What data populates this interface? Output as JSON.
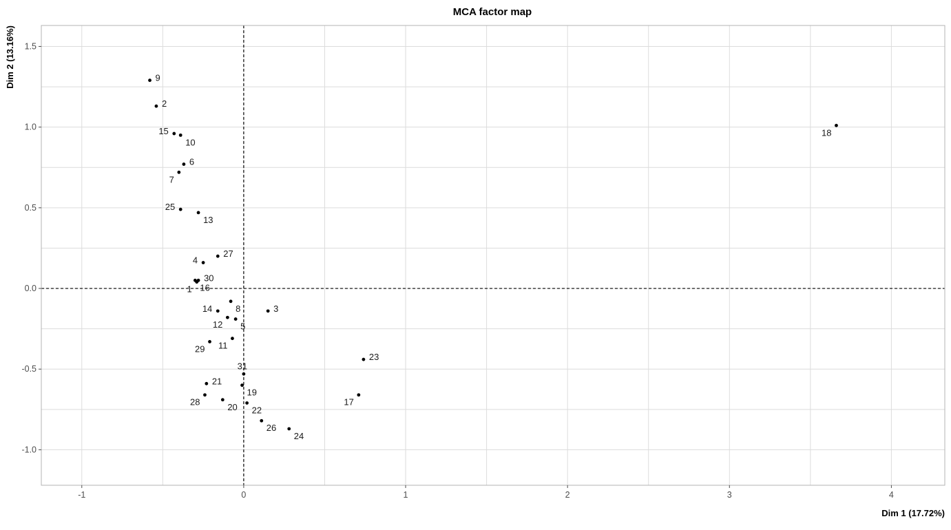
{
  "chart_data": {
    "type": "scatter",
    "title": "MCA factor map",
    "xlabel": "Dim 1 (17.72%)",
    "ylabel": "Dim 2 (13.16%)",
    "xlim": [
      -1.25,
      4.33
    ],
    "ylim": [
      -1.22,
      1.63
    ],
    "x_ticks": [
      -1,
      0,
      1,
      2,
      3,
      4
    ],
    "y_ticks": [
      -1.0,
      -0.5,
      0.0,
      0.5,
      1.0,
      1.5
    ],
    "x_tick_labels": [
      "-1",
      "0",
      "1",
      "2",
      "3",
      "4"
    ],
    "y_tick_labels": [
      "-1.0",
      "-0.5",
      "0.0",
      "0.5",
      "1.0",
      "1.5"
    ],
    "grid": true,
    "reference_lines": {
      "x": 0,
      "y": 0,
      "style": "dashed"
    },
    "point_color": "#000000",
    "points": [
      {
        "label": "1",
        "x": -0.29,
        "y": 0.04,
        "label_pos": "bottom-left"
      },
      {
        "label": "2",
        "x": -0.54,
        "y": 1.13,
        "label_pos": "right"
      },
      {
        "label": "3",
        "x": 0.15,
        "y": -0.14,
        "label_pos": "right"
      },
      {
        "label": "4",
        "x": -0.25,
        "y": 0.16,
        "label_pos": "left"
      },
      {
        "label": "5",
        "x": -0.05,
        "y": -0.19,
        "label_pos": "bottom-right"
      },
      {
        "label": "6",
        "x": -0.37,
        "y": 0.77,
        "label_pos": "right"
      },
      {
        "label": "7",
        "x": -0.4,
        "y": 0.72,
        "label_pos": "bottom-left"
      },
      {
        "label": "8",
        "x": -0.08,
        "y": -0.08,
        "label_pos": "bottom-right"
      },
      {
        "label": "9",
        "x": -0.58,
        "y": 1.29,
        "label_pos": "right"
      },
      {
        "label": "10",
        "x": -0.39,
        "y": 0.95,
        "label_pos": "bottom-right"
      },
      {
        "label": "11",
        "x": -0.07,
        "y": -0.31,
        "label_pos": "bottom-left"
      },
      {
        "label": "12",
        "x": -0.1,
        "y": -0.18,
        "label_pos": "bottom-left"
      },
      {
        "label": "13",
        "x": -0.28,
        "y": 0.47,
        "label_pos": "bottom-right"
      },
      {
        "label": "14",
        "x": -0.16,
        "y": -0.14,
        "label_pos": "left"
      },
      {
        "label": "15",
        "x": -0.43,
        "y": 0.96,
        "label_pos": "left"
      },
      {
        "label": "16",
        "x": -0.3,
        "y": 0.05,
        "label_pos": "bottom-right"
      },
      {
        "label": "17",
        "x": 0.71,
        "y": -0.66,
        "label_pos": "bottom-left"
      },
      {
        "label": "18",
        "x": 3.66,
        "y": 1.01,
        "label_pos": "bottom-left"
      },
      {
        "label": "19",
        "x": -0.01,
        "y": -0.6,
        "label_pos": "bottom-right"
      },
      {
        "label": "20",
        "x": -0.13,
        "y": -0.69,
        "label_pos": "bottom-right"
      },
      {
        "label": "21",
        "x": -0.23,
        "y": -0.59,
        "label_pos": "right"
      },
      {
        "label": "22",
        "x": 0.02,
        "y": -0.71,
        "label_pos": "bottom-right"
      },
      {
        "label": "23",
        "x": 0.74,
        "y": -0.44,
        "label_pos": "right"
      },
      {
        "label": "24",
        "x": 0.28,
        "y": -0.87,
        "label_pos": "bottom-right"
      },
      {
        "label": "25",
        "x": -0.39,
        "y": 0.49,
        "label_pos": "left"
      },
      {
        "label": "26",
        "x": 0.11,
        "y": -0.82,
        "label_pos": "bottom-right"
      },
      {
        "label": "27",
        "x": -0.16,
        "y": 0.2,
        "label_pos": "right"
      },
      {
        "label": "28",
        "x": -0.24,
        "y": -0.66,
        "label_pos": "bottom-left"
      },
      {
        "label": "29",
        "x": -0.21,
        "y": -0.33,
        "label_pos": "bottom-left"
      },
      {
        "label": "30",
        "x": -0.28,
        "y": 0.05,
        "label_pos": "right"
      },
      {
        "label": "31",
        "x": 0.0,
        "y": -0.53,
        "label_pos": "top-left"
      }
    ]
  }
}
